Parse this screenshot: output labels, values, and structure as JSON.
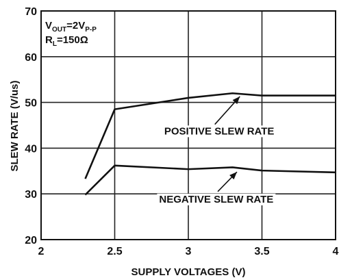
{
  "chart_data": {
    "type": "line",
    "xlabel": "SUPPLY VOLTAGES (V)",
    "ylabel": "SLEW RATE (V/us)",
    "xlim": [
      2,
      4
    ],
    "ylim": [
      20,
      70
    ],
    "xticks": [
      2,
      2.5,
      3,
      3.5,
      4
    ],
    "yticks": [
      20,
      30,
      40,
      50,
      60,
      70
    ],
    "xtick_labels": [
      "2",
      "2.5",
      "3",
      "3.5",
      "4"
    ],
    "ytick_labels": [
      "20",
      "30",
      "40",
      "50",
      "60",
      "70"
    ],
    "grid": true,
    "conditions": {
      "vout_main": "V",
      "vout_sub": "OUT",
      "vout_value": "=2V",
      "vout_unit_sub": "P-P",
      "rl_main": "R",
      "rl_sub": "L",
      "rl_value": "=150Ω"
    },
    "series": [
      {
        "label": "POSITIVE SLEW RATE",
        "x": [
          2.3,
          2.5,
          3.0,
          3.3,
          3.5,
          4.0
        ],
        "y": [
          33.3,
          48.5,
          51.0,
          52.0,
          51.5,
          51.5
        ],
        "arrow_to": [
          3.35,
          51.3
        ],
        "arrow_from": [
          3.18,
          45.2
        ],
        "label_at": [
          3.21,
          43.0
        ]
      },
      {
        "label": "NEGATIVE SLEW RATE",
        "x": [
          2.3,
          2.5,
          3.0,
          3.3,
          3.5,
          4.0
        ],
        "y": [
          29.8,
          36.2,
          35.4,
          35.8,
          35.1,
          34.7
        ],
        "arrow_to": [
          3.33,
          34.8
        ],
        "arrow_from": [
          3.2,
          30.5
        ],
        "label_at": [
          3.19,
          28.1
        ]
      }
    ]
  }
}
